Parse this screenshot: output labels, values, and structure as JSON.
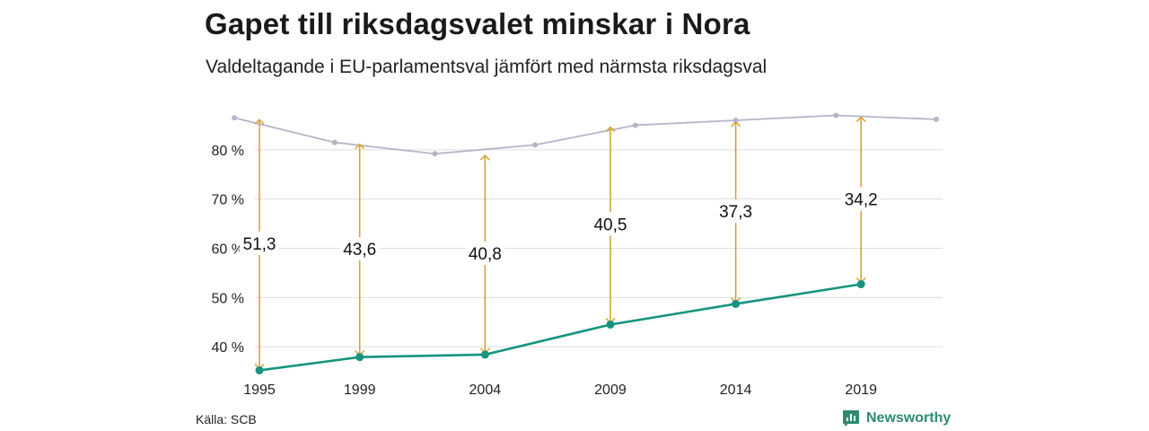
{
  "header": {
    "title": "Gapet till riksdagsvalet minskar i Nora",
    "subtitle": "Valdeltagande i EU-parlamentsval jämfört med närmsta riksdagsval"
  },
  "footer": {
    "source": "Källa: SCB",
    "brand": "Newsworthy",
    "brand_icon": "chart-bubble-icon",
    "brand_color": "#2e8b72"
  },
  "colors": {
    "eu_line": "#17947f",
    "riksdag_line": "#b7b4c6",
    "gap_arrow": "#d4a02e",
    "grid": "#dddddd"
  },
  "chart_data": {
    "type": "line",
    "xlim": [
      1995,
      2022
    ],
    "ylim": [
      32,
      88
    ],
    "y_ticks": [
      40,
      50,
      60,
      70,
      80
    ],
    "y_tick_labels": [
      "40 %",
      "50 %",
      "60 %",
      "70 %",
      "80 %"
    ],
    "x_ticks": [
      1995,
      1999,
      2004,
      2009,
      2014,
      2019
    ],
    "x_tick_labels": [
      "1995",
      "1999",
      "2004",
      "2009",
      "2014",
      "2019"
    ],
    "grid": "horizontal",
    "series": [
      {
        "key": "riksdag",
        "x": [
          1994,
          1998,
          2002,
          2006,
          2010,
          2014,
          2018,
          2022
        ],
        "values": [
          86.5,
          81.5,
          79.2,
          81.0,
          85.0,
          86.0,
          87.0,
          86.2
        ]
      },
      {
        "key": "eu",
        "x": [
          1995,
          1999,
          2004,
          2009,
          2014,
          2019
        ],
        "values": [
          35.2,
          37.9,
          38.4,
          44.5,
          48.7,
          52.7
        ]
      }
    ],
    "gaps": [
      {
        "x": 1995,
        "from": 35.2,
        "to": 86.5,
        "label": "51,3"
      },
      {
        "x": 1999,
        "from": 37.9,
        "to": 81.5,
        "label": "43,6"
      },
      {
        "x": 2004,
        "from": 38.4,
        "to": 79.2,
        "label": "40,8"
      },
      {
        "x": 2009,
        "from": 44.5,
        "to": 85.0,
        "label": "40,5"
      },
      {
        "x": 2014,
        "from": 48.7,
        "to": 86.0,
        "label": "37,3"
      },
      {
        "x": 2019,
        "from": 52.7,
        "to": 87.0,
        "label": "34,2"
      }
    ]
  }
}
